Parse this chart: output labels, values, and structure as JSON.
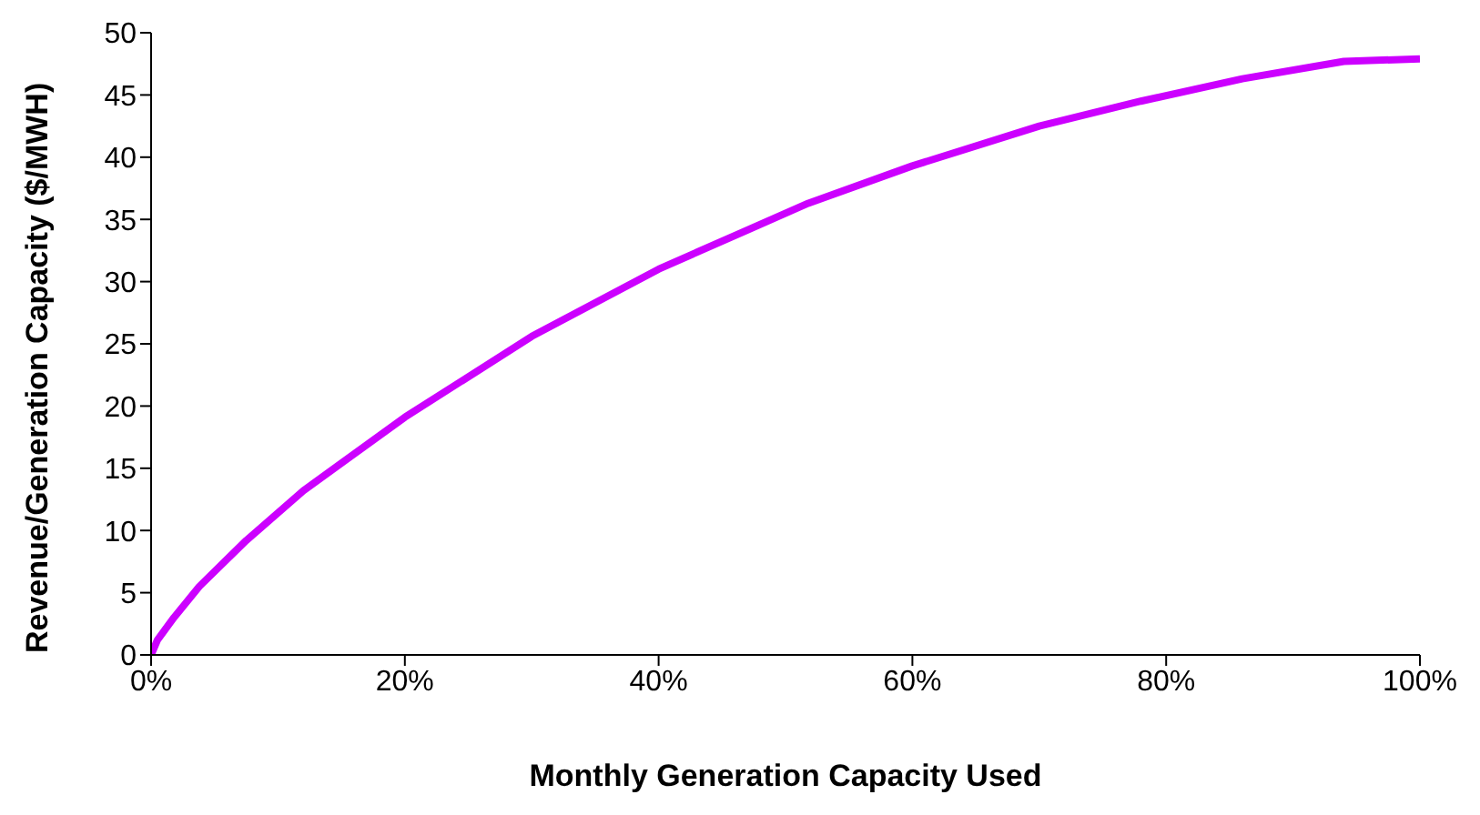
{
  "chart_data": {
    "type": "line",
    "xlabel": "Monthly Generation Capacity Used",
    "ylabel": "Revenue/Generation Capacity ($/MWH)",
    "x": [
      0,
      0.5,
      1.8,
      3.8,
      7.5,
      12,
      20,
      30,
      40,
      51.8,
      60,
      70,
      78,
      86,
      94,
      100
    ],
    "series": [
      {
        "color": "#cc00ff",
        "values": [
          0,
          1.2,
          3,
          5.5,
          9.2,
          13.2,
          19.1,
          25.6,
          31,
          36.3,
          39.3,
          42.5,
          44.5,
          46.3,
          47.7,
          47.9
        ]
      }
    ],
    "xlim": [
      0,
      100
    ],
    "xticks": [
      {
        "value": 0,
        "label": "0%"
      },
      {
        "value": 20,
        "label": "20%"
      },
      {
        "value": 40,
        "label": "40%"
      },
      {
        "value": 60,
        "label": "60%"
      },
      {
        "value": 80,
        "label": "80%"
      },
      {
        "value": 100,
        "label": "100%"
      }
    ],
    "ylim": [
      0,
      50
    ],
    "yticks": [
      0,
      5,
      10,
      15,
      20,
      25,
      30,
      35,
      40,
      45,
      50
    ],
    "grid": false,
    "line_style": "solid"
  }
}
